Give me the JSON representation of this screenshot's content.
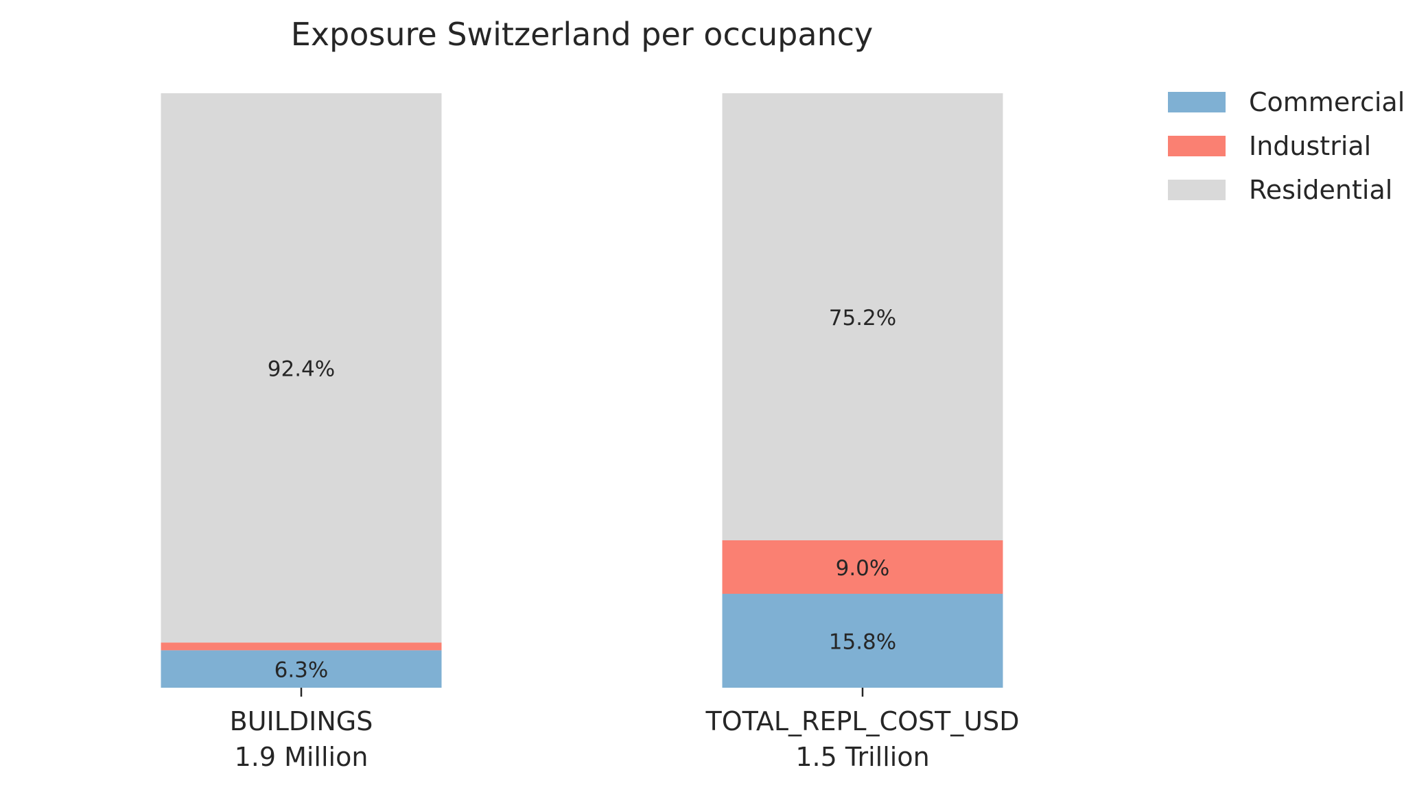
{
  "chart_data": {
    "type": "bar",
    "stacked": true,
    "normalized_percent": true,
    "title": "Exposure Switzerland per occupancy",
    "categories": [
      "BUILDINGS",
      "TOTAL_REPL_COST_USD"
    ],
    "category_totals": [
      "1.9 Million",
      "1.5 Trillion"
    ],
    "series": [
      {
        "name": "Commercial",
        "color": "#7fb0d3",
        "values": [
          6.3,
          15.8
        ],
        "labels": [
          "6.3%",
          "15.8%"
        ]
      },
      {
        "name": "Industrial",
        "color": "#fa8072",
        "values": [
          1.3,
          9.0
        ],
        "labels": [
          "",
          "9.0%"
        ]
      },
      {
        "name": "Residential",
        "color": "#d9d9d9",
        "values": [
          92.4,
          75.2
        ],
        "labels": [
          "92.4%",
          "75.2%"
        ]
      }
    ],
    "ylim": [
      0,
      100
    ],
    "grid": false,
    "legend": "top-right"
  }
}
